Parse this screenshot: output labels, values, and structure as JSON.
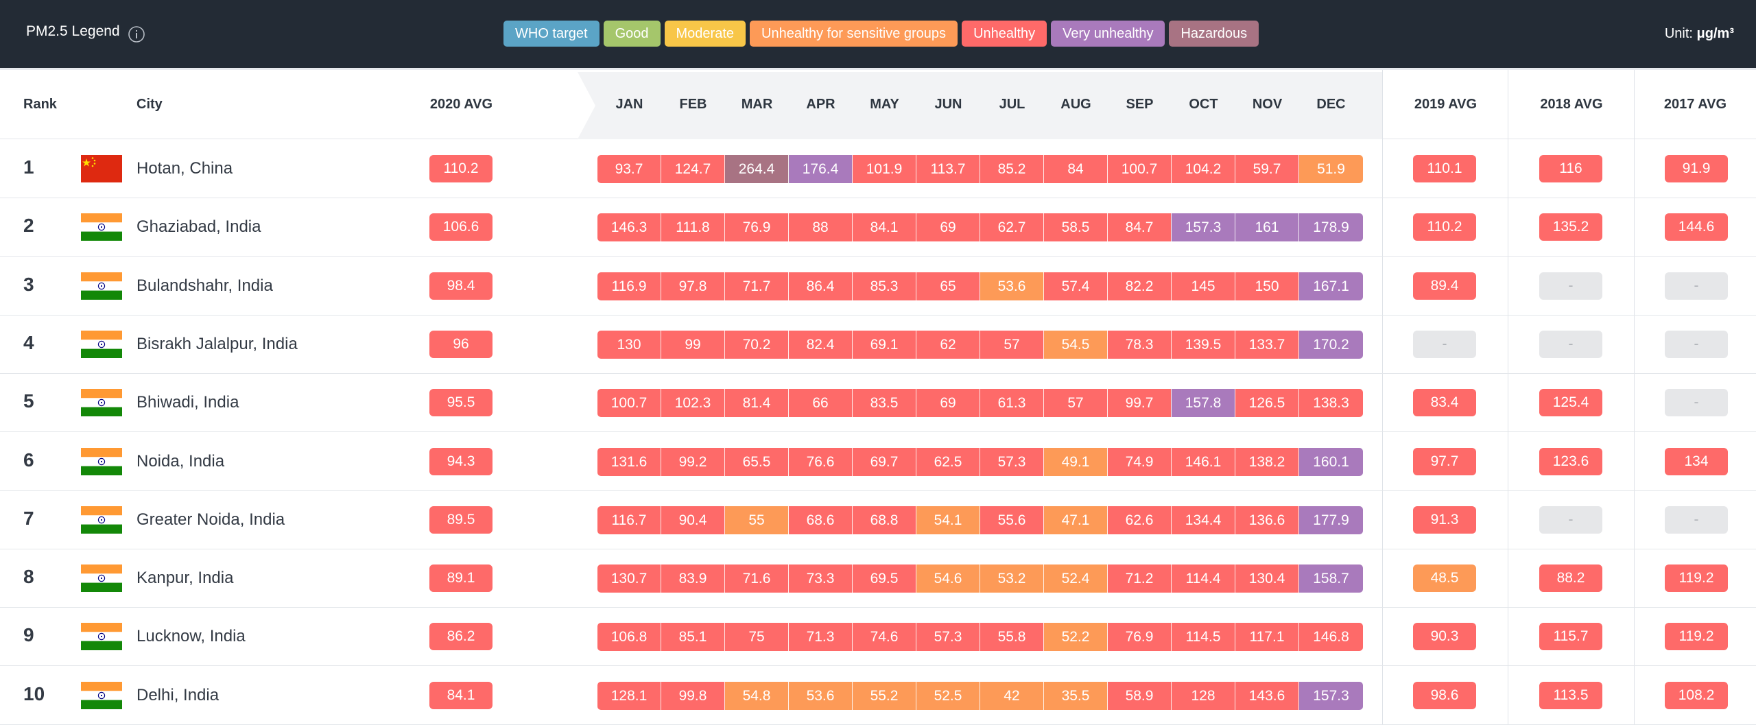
{
  "legend": {
    "title": "PM2.5 Legend",
    "items": [
      {
        "label": "WHO target",
        "color": "#5ba4c6"
      },
      {
        "label": "Good",
        "color": "#a5c66b"
      },
      {
        "label": "Moderate",
        "color": "#f8c648"
      },
      {
        "label": "Unhealthy for sensitive groups",
        "color": "#fd9a57"
      },
      {
        "label": "Unhealthy",
        "color": "#fe6a69"
      },
      {
        "label": "Very unhealthy",
        "color": "#a97abc"
      },
      {
        "label": "Hazardous",
        "color": "#a87383"
      }
    ],
    "unit_label": "Unit:",
    "unit_value": "μg/m³"
  },
  "header": {
    "rank": "Rank",
    "city": "City",
    "avg2020": "2020 AVG",
    "months": [
      "JAN",
      "FEB",
      "MAR",
      "APR",
      "MAY",
      "JUN",
      "JUL",
      "AUG",
      "SEP",
      "OCT",
      "NOV",
      "DEC"
    ],
    "avg2019": "2019 AVG",
    "avg2018": "2018 AVG",
    "avg2017": "2017 AVG"
  },
  "colors": {
    "unhealthy_sensitive": "#fd9a57",
    "unhealthy": "#fe6a69",
    "very_unhealthy": "#a97abc",
    "hazardous": "#a87383",
    "no_data": "#e6e7e9"
  },
  "rows": [
    {
      "rank": "1",
      "flag": "china-flag",
      "city": "Hotan, China",
      "avg2020": "110.2",
      "months": [
        "93.7",
        "124.7",
        "264.4",
        "176.4",
        "101.9",
        "113.7",
        "85.2",
        "84",
        "100.7",
        "104.2",
        "59.7",
        "51.9"
      ],
      "avg2019": "110.1",
      "avg2018": "116",
      "avg2017": "91.9"
    },
    {
      "rank": "2",
      "flag": "india-flag",
      "city": "Ghaziabad, India",
      "avg2020": "106.6",
      "months": [
        "146.3",
        "111.8",
        "76.9",
        "88",
        "84.1",
        "69",
        "62.7",
        "58.5",
        "84.7",
        "157.3",
        "161",
        "178.9"
      ],
      "avg2019": "110.2",
      "avg2018": "135.2",
      "avg2017": "144.6"
    },
    {
      "rank": "3",
      "flag": "india-flag",
      "city": "Bulandshahr, India",
      "avg2020": "98.4",
      "months": [
        "116.9",
        "97.8",
        "71.7",
        "86.4",
        "85.3",
        "65",
        "53.6",
        "57.4",
        "82.2",
        "145",
        "150",
        "167.1"
      ],
      "avg2019": "89.4",
      "avg2018": "-",
      "avg2017": "-"
    },
    {
      "rank": "4",
      "flag": "india-flag",
      "city": "Bisrakh Jalalpur, India",
      "avg2020": "96",
      "months": [
        "130",
        "99",
        "70.2",
        "82.4",
        "69.1",
        "62",
        "57",
        "54.5",
        "78.3",
        "139.5",
        "133.7",
        "170.2"
      ],
      "avg2019": "-",
      "avg2018": "-",
      "avg2017": "-"
    },
    {
      "rank": "5",
      "flag": "india-flag",
      "city": "Bhiwadi, India",
      "avg2020": "95.5",
      "months": [
        "100.7",
        "102.3",
        "81.4",
        "66",
        "83.5",
        "69",
        "61.3",
        "57",
        "99.7",
        "157.8",
        "126.5",
        "138.3"
      ],
      "avg2019": "83.4",
      "avg2018": "125.4",
      "avg2017": "-"
    },
    {
      "rank": "6",
      "flag": "india-flag",
      "city": "Noida, India",
      "avg2020": "94.3",
      "months": [
        "131.6",
        "99.2",
        "65.5",
        "76.6",
        "69.7",
        "62.5",
        "57.3",
        "49.1",
        "74.9",
        "146.1",
        "138.2",
        "160.1"
      ],
      "avg2019": "97.7",
      "avg2018": "123.6",
      "avg2017": "134"
    },
    {
      "rank": "7",
      "flag": "india-flag",
      "city": "Greater Noida, India",
      "avg2020": "89.5",
      "months": [
        "116.7",
        "90.4",
        "55",
        "68.6",
        "68.8",
        "54.1",
        "55.6",
        "47.1",
        "62.6",
        "134.4",
        "136.6",
        "177.9"
      ],
      "avg2019": "91.3",
      "avg2018": "-",
      "avg2017": "-"
    },
    {
      "rank": "8",
      "flag": "india-flag",
      "city": "Kanpur, India",
      "avg2020": "89.1",
      "months": [
        "130.7",
        "83.9",
        "71.6",
        "73.3",
        "69.5",
        "54.6",
        "53.2",
        "52.4",
        "71.2",
        "114.4",
        "130.4",
        "158.7"
      ],
      "avg2019": "48.5",
      "avg2018": "88.2",
      "avg2017": "119.2"
    },
    {
      "rank": "9",
      "flag": "india-flag",
      "city": "Lucknow, India",
      "avg2020": "86.2",
      "months": [
        "106.8",
        "85.1",
        "75",
        "71.3",
        "74.6",
        "57.3",
        "55.8",
        "52.2",
        "76.9",
        "114.5",
        "117.1",
        "146.8"
      ],
      "avg2019": "90.3",
      "avg2018": "115.7",
      "avg2017": "119.2"
    },
    {
      "rank": "10",
      "flag": "india-flag",
      "city": "Delhi, India",
      "avg2020": "84.1",
      "months": [
        "128.1",
        "99.8",
        "54.8",
        "53.6",
        "55.2",
        "52.5",
        "42",
        "35.5",
        "58.9",
        "128",
        "143.6",
        "157.3"
      ],
      "avg2019": "98.6",
      "avg2018": "113.5",
      "avg2017": "108.2"
    }
  ]
}
